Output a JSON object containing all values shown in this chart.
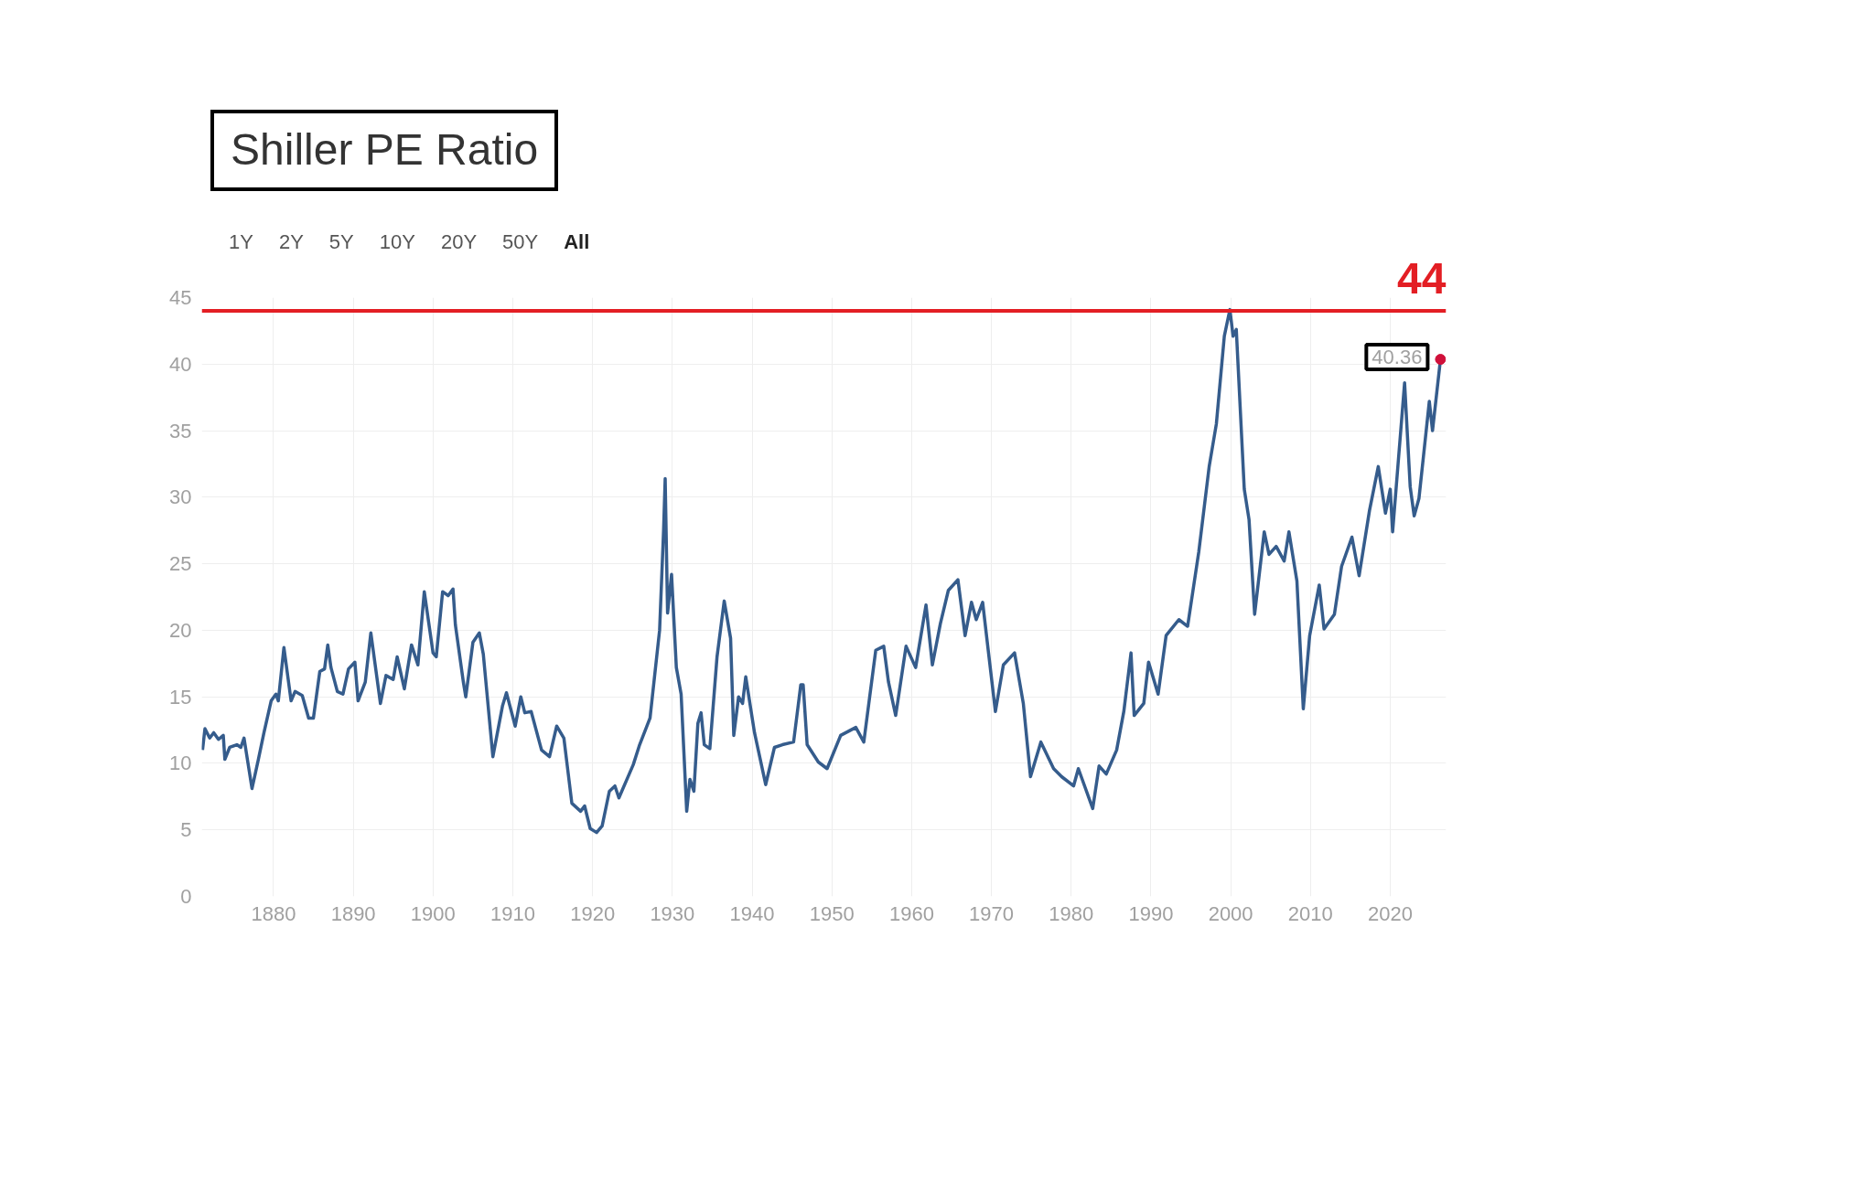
{
  "chart_data": {
    "type": "line",
    "title": "Shiller PE Ratio",
    "annotations": [
      "1Y",
      "2Y",
      "5Y",
      "10Y",
      "20Y",
      "50Y",
      "All",
      {
        "text": "40.36",
        "x": 2026.3,
        "y": 40.36
      }
    ],
    "xlim": [
      1871,
      2027
    ],
    "xticks": [
      1880,
      1890,
      1900,
      1910,
      1920,
      1930,
      1940,
      1950,
      1960,
      1970,
      1980,
      1990,
      2000,
      2010,
      2020
    ],
    "ylim": [
      0,
      45
    ],
    "yticks": [
      0,
      5,
      10,
      15,
      20,
      25,
      30,
      35,
      40,
      45
    ],
    "grid": true,
    "ref_lines": [
      {
        "axis": "y",
        "value": 44,
        "label": "44",
        "color": "#e31e24"
      }
    ],
    "series": [
      {
        "color": "#355c8c",
        "x": [
          1871.1,
          1871.4,
          1872.0,
          1872.5,
          1873.1,
          1873.7,
          1873.9,
          1874.5,
          1875.4,
          1875.9,
          1876.3,
          1877.3,
          1878.1,
          1878.8,
          1879.7,
          1880.3,
          1880.6,
          1881.3,
          1882.2,
          1882.7,
          1883.6,
          1884.4,
          1885.0,
          1885.8,
          1886.4,
          1886.8,
          1887.2,
          1888.0,
          1888.7,
          1889.4,
          1890.2,
          1890.6,
          1891.5,
          1892.2,
          1893.4,
          1894.1,
          1895.0,
          1895.5,
          1896.4,
          1897.3,
          1898.1,
          1898.9,
          1900.0,
          1900.4,
          1901.2,
          1901.9,
          1902.5,
          1902.8,
          1903.8,
          1904.1,
          1905.0,
          1905.8,
          1906.3,
          1907.5,
          1908.7,
          1909.2,
          1910.3,
          1911.0,
          1911.5,
          1912.3,
          1913.6,
          1914.6,
          1915.5,
          1916.4,
          1917.4,
          1918.5,
          1919.0,
          1919.7,
          1920.5,
          1921.2,
          1922.1,
          1922.8,
          1923.3,
          1925.1,
          1925.9,
          1927.2,
          1928.4,
          1928.9,
          1929.1,
          1929.4,
          1929.9,
          1930.5,
          1931.1,
          1931.8,
          1932.2,
          1932.7,
          1933.2,
          1933.6,
          1934.0,
          1934.7,
          1935.6,
          1936.5,
          1937.3,
          1937.7,
          1938.3,
          1938.8,
          1939.2,
          1940.3,
          1941.7,
          1942.8,
          1943.8,
          1945.2,
          1946.1,
          1946.4,
          1946.9,
          1948.3,
          1949.4,
          1951.1,
          1953.0,
          1954.0,
          1955.5,
          1956.5,
          1957.1,
          1958.0,
          1959.3,
          1960.5,
          1961.8,
          1962.6,
          1963.6,
          1964.6,
          1965.8,
          1966.7,
          1967.5,
          1968.1,
          1968.9,
          1969.6,
          1970.5,
          1971.5,
          1972.9,
          1974.0,
          1974.9,
          1976.2,
          1977.8,
          1978.8,
          1980.3,
          1980.9,
          1982.7,
          1983.5,
          1984.4,
          1985.7,
          1986.6,
          1987.5,
          1987.9,
          1989.1,
          1989.7,
          1990.9,
          1991.9,
          1993.5,
          1994.6,
          1996.0,
          1997.3,
          1998.2,
          1999.2,
          1999.9,
          2000.3,
          2000.7,
          2001.7,
          2002.3,
          2003.0,
          2004.2,
          2004.8,
          2005.7,
          2006.7,
          2007.3,
          2008.3,
          2009.1,
          2009.9,
          2011.1,
          2011.7,
          2013.0,
          2013.9,
          2015.2,
          2016.1,
          2017.4,
          2018.5,
          2019.4,
          2020.0,
          2020.3,
          2021.8,
          2022.5,
          2023.0,
          2023.6,
          2024.9,
          2025.3,
          2026.3
        ],
        "values": [
          11.0,
          12.6,
          11.9,
          12.3,
          11.8,
          12.1,
          10.3,
          11.2,
          11.4,
          11.2,
          11.9,
          8.1,
          10.3,
          12.3,
          14.7,
          15.2,
          14.7,
          18.7,
          14.7,
          15.4,
          15.1,
          13.4,
          13.4,
          16.9,
          17.1,
          18.9,
          17.2,
          15.4,
          15.2,
          17.1,
          17.6,
          14.7,
          16.1,
          19.8,
          14.5,
          16.6,
          16.3,
          18.0,
          15.6,
          18.9,
          17.4,
          22.9,
          18.3,
          18.0,
          22.9,
          22.6,
          23.1,
          20.4,
          16.1,
          15.0,
          19.1,
          19.8,
          18.2,
          10.5,
          14.3,
          15.3,
          12.8,
          15.0,
          13.8,
          13.9,
          11.0,
          10.5,
          12.8,
          11.9,
          7.0,
          6.4,
          6.8,
          5.1,
          4.8,
          5.3,
          7.9,
          8.3,
          7.4,
          9.9,
          11.4,
          13.4,
          20.0,
          27.5,
          31.4,
          21.3,
          24.2,
          17.2,
          15.2,
          6.4,
          8.8,
          7.9,
          13.0,
          13.8,
          11.4,
          11.1,
          18.0,
          22.2,
          19.4,
          12.1,
          15.0,
          14.5,
          16.5,
          12.3,
          8.4,
          11.2,
          11.4,
          11.6,
          15.9,
          15.9,
          11.4,
          10.1,
          9.6,
          12.1,
          12.7,
          11.6,
          18.5,
          18.8,
          16.1,
          13.6,
          18.8,
          17.2,
          21.9,
          17.4,
          20.5,
          23.0,
          23.8,
          19.6,
          22.1,
          20.8,
          22.1,
          18.5,
          13.9,
          17.4,
          18.3,
          14.5,
          9.0,
          11.6,
          9.6,
          9.0,
          8.3,
          9.6,
          6.6,
          9.8,
          9.2,
          11.0,
          13.9,
          18.3,
          13.6,
          14.5,
          17.6,
          15.2,
          19.6,
          20.8,
          20.3,
          25.9,
          32.3,
          35.5,
          42.1,
          44.1,
          42.1,
          42.6,
          30.6,
          28.3,
          21.2,
          27.4,
          25.7,
          26.3,
          25.2,
          27.4,
          23.7,
          14.1,
          19.6,
          23.4,
          20.1,
          21.2,
          24.8,
          27.0,
          24.1,
          29.0,
          32.3,
          28.8,
          30.6,
          27.4,
          38.6,
          30.8,
          28.6,
          29.9,
          37.2,
          35.0,
          40.36
        ]
      }
    ]
  }
}
